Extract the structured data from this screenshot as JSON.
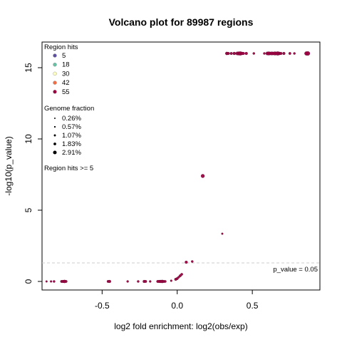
{
  "chart_data": {
    "type": "scatter",
    "title": "Volcano plot for 89987 regions",
    "xlabel": "log2 fold enrichment: log2(obs/exp)",
    "ylabel": "-log10(p_value)",
    "xlim": [
      -0.9,
      0.95
    ],
    "ylim": [
      -0.6,
      16.8
    ],
    "x_ticks": [
      -0.5,
      0.0,
      0.5
    ],
    "x_tick_labels": [
      "-0.5",
      "0.0",
      "0.5"
    ],
    "y_ticks": [
      0,
      5,
      10,
      15
    ],
    "y_tick_labels": [
      "0",
      "5",
      "10",
      "15"
    ],
    "threshold": {
      "y": 1.3,
      "label": "p_value = 0.05",
      "color": "#cccccc"
    },
    "point_color": "#9e0142",
    "legend_hits": {
      "title": "Region hits",
      "entries": [
        {
          "label": "5",
          "color": "#5e4fa2"
        },
        {
          "label": "18",
          "color": "#66c2a5"
        },
        {
          "label": "30",
          "color": "#ffffbf"
        },
        {
          "label": "42",
          "color": "#f46d43"
        },
        {
          "label": "55",
          "color": "#9e0142"
        }
      ]
    },
    "legend_fraction": {
      "title": "Genome fraction",
      "entries": [
        {
          "label": "0.26%",
          "size": 0.26
        },
        {
          "label": "0.57%",
          "size": 0.57
        },
        {
          "label": "1.07%",
          "size": 1.07
        },
        {
          "label": "1.83%",
          "size": 1.83
        },
        {
          "label": "2.91%",
          "size": 2.91
        }
      ]
    },
    "filter_note": "Region hits >= 5",
    "points": [
      {
        "x": -0.87,
        "y": 0.0,
        "s": 0.3
      },
      {
        "x": -0.84,
        "y": 0.0,
        "s": 0.4
      },
      {
        "x": -0.82,
        "y": 0.0,
        "s": 0.6
      },
      {
        "x": -0.77,
        "y": 0.0,
        "s": 0.8
      },
      {
        "x": -0.76,
        "y": 0.0,
        "s": 1.0
      },
      {
        "x": -0.75,
        "y": 0.0,
        "s": 1.2
      },
      {
        "x": -0.74,
        "y": 0.0,
        "s": 0.8
      },
      {
        "x": -0.46,
        "y": 0.0,
        "s": 0.8
      },
      {
        "x": -0.45,
        "y": 0.0,
        "s": 1.0
      },
      {
        "x": -0.33,
        "y": 0.0,
        "s": 0.5
      },
      {
        "x": -0.26,
        "y": 0.0,
        "s": 0.6
      },
      {
        "x": -0.22,
        "y": 0.0,
        "s": 1.0
      },
      {
        "x": -0.21,
        "y": 0.0,
        "s": 0.8
      },
      {
        "x": -0.18,
        "y": 0.0,
        "s": 0.5
      },
      {
        "x": -0.13,
        "y": 0.0,
        "s": 0.8
      },
      {
        "x": -0.12,
        "y": 0.0,
        "s": 1.0
      },
      {
        "x": -0.11,
        "y": 0.0,
        "s": 1.1
      },
      {
        "x": -0.1,
        "y": 0.0,
        "s": 1.2
      },
      {
        "x": -0.09,
        "y": 0.0,
        "s": 0.9
      },
      {
        "x": -0.08,
        "y": 0.0,
        "s": 0.7
      },
      {
        "x": -0.04,
        "y": 0.05,
        "s": 0.4
      },
      {
        "x": -0.01,
        "y": 0.15,
        "s": 0.9
      },
      {
        "x": 0.0,
        "y": 0.2,
        "s": 0.8
      },
      {
        "x": 0.01,
        "y": 0.3,
        "s": 0.6
      },
      {
        "x": 0.02,
        "y": 0.4,
        "s": 0.8
      },
      {
        "x": 0.03,
        "y": 0.5,
        "s": 0.7
      },
      {
        "x": 0.06,
        "y": 1.35,
        "s": 1.0
      },
      {
        "x": 0.1,
        "y": 1.4,
        "s": 0.6
      },
      {
        "x": 0.17,
        "y": 7.4,
        "s": 1.6
      },
      {
        "x": 0.3,
        "y": 3.35,
        "s": 0.3
      },
      {
        "x": 0.33,
        "y": 16.0,
        "s": 1.2
      },
      {
        "x": 0.34,
        "y": 16.0,
        "s": 1.0
      },
      {
        "x": 0.36,
        "y": 16.0,
        "s": 0.9
      },
      {
        "x": 0.38,
        "y": 16.0,
        "s": 1.1
      },
      {
        "x": 0.4,
        "y": 16.0,
        "s": 1.4
      },
      {
        "x": 0.41,
        "y": 16.0,
        "s": 1.6
      },
      {
        "x": 0.42,
        "y": 16.0,
        "s": 1.8
      },
      {
        "x": 0.43,
        "y": 16.0,
        "s": 1.2
      },
      {
        "x": 0.44,
        "y": 16.0,
        "s": 1.0
      },
      {
        "x": 0.46,
        "y": 16.0,
        "s": 1.0
      },
      {
        "x": 0.51,
        "y": 16.0,
        "s": 0.6
      },
      {
        "x": 0.58,
        "y": 16.0,
        "s": 0.6
      },
      {
        "x": 0.6,
        "y": 16.0,
        "s": 1.4
      },
      {
        "x": 0.61,
        "y": 16.0,
        "s": 1.6
      },
      {
        "x": 0.62,
        "y": 16.0,
        "s": 1.2
      },
      {
        "x": 0.63,
        "y": 16.0,
        "s": 1.5
      },
      {
        "x": 0.64,
        "y": 16.0,
        "s": 1.2
      },
      {
        "x": 0.65,
        "y": 16.0,
        "s": 1.6
      },
      {
        "x": 0.66,
        "y": 16.0,
        "s": 1.4
      },
      {
        "x": 0.67,
        "y": 16.0,
        "s": 1.8
      },
      {
        "x": 0.68,
        "y": 16.0,
        "s": 1.2
      },
      {
        "x": 0.69,
        "y": 16.0,
        "s": 1.0
      },
      {
        "x": 0.71,
        "y": 16.0,
        "s": 1.0
      },
      {
        "x": 0.75,
        "y": 16.0,
        "s": 0.8
      },
      {
        "x": 0.78,
        "y": 16.0,
        "s": 0.6
      },
      {
        "x": 0.86,
        "y": 16.0,
        "s": 1.8
      },
      {
        "x": 0.87,
        "y": 16.0,
        "s": 2.0
      }
    ]
  }
}
